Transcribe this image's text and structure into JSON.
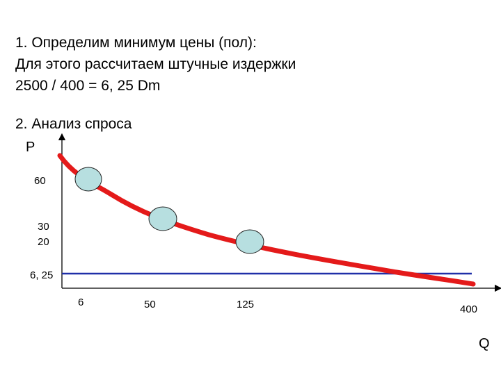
{
  "intro": {
    "line1": "1. Определим минимум цены (пол):",
    "line2": "Для этого рассчитаем штучные издержки",
    "line3": "2500 / 400  = 6, 25  Dm"
  },
  "section2": {
    "title": "2. Анализ спроса"
  },
  "chart_data": {
    "type": "line",
    "title": "",
    "ylabel": "P",
    "xlabel": "Q",
    "y_ticks": [
      "60",
      "30",
      "20",
      "6, 25"
    ],
    "x_ticks": [
      "6",
      "50",
      "125",
      "400"
    ],
    "demand_curve": {
      "name": "",
      "points": [
        {
          "q": 6,
          "p": 60
        },
        {
          "q": 50,
          "p": 30
        },
        {
          "q": 125,
          "p": 20
        },
        {
          "q": 400,
          "p": 6.25
        }
      ]
    },
    "price_floor": 6.25,
    "highlighted_points": [
      {
        "q": 6,
        "p": 60
      },
      {
        "q": 50,
        "p": 30
      },
      {
        "q": 125,
        "p": 20
      }
    ],
    "colors": {
      "curve": "#e41a1a",
      "floor": "#1f2fa8",
      "marker_fill": "#b7dfe0",
      "axis": "#000000"
    }
  }
}
